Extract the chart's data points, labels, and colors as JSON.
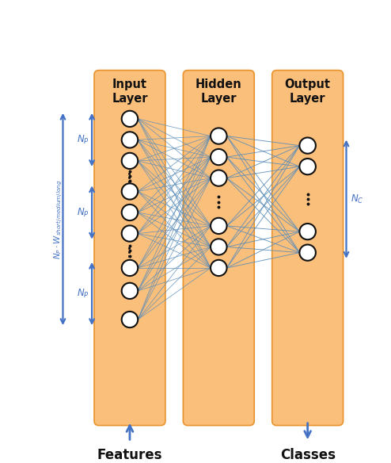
{
  "fig_width": 4.94,
  "fig_height": 5.84,
  "dpi": 100,
  "bg_color": "#ffffff",
  "arrow_color": "#4472C4",
  "connection_color": "#5B8DB8",
  "neuron_face": "#ffffff",
  "neuron_edge": "#111111",
  "box_color": "#FBBF7C",
  "box_edge": "#E8922A",
  "layer_labels": [
    "Input\nLayer",
    "Hidden\nLayer",
    "Output\nLayer"
  ],
  "bottom_labels": [
    "Features",
    "Classes"
  ]
}
